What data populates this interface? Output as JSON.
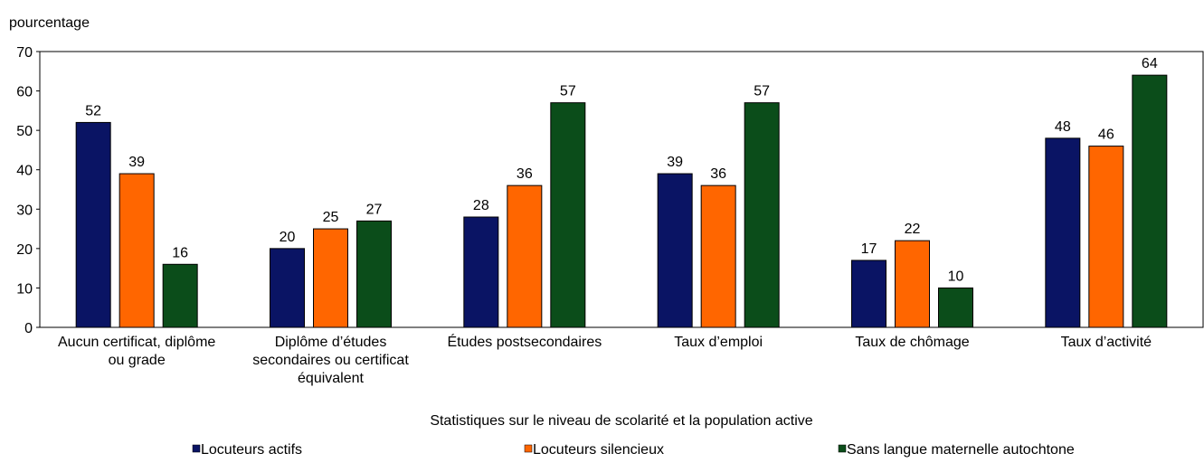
{
  "chart_data": {
    "type": "bar",
    "y_label": "pourcentage",
    "x_label": "Statistiques sur le niveau de scolarité et la population active",
    "categories": [
      "Aucun certificat, diplôme ou grade",
      "Diplôme d’études secondaires ou certificat équivalent",
      "Études postsecondaires",
      "Taux d’emploi",
      "Taux de chômage",
      "Taux d’activité"
    ],
    "series": [
      {
        "name": "Locuteurs actifs",
        "color": "#0a1464",
        "values": [
          52,
          20,
          28,
          39,
          17,
          48
        ]
      },
      {
        "name": "Locuteurs silencieux",
        "color": "#ff6600",
        "values": [
          39,
          25,
          36,
          36,
          22,
          46
        ]
      },
      {
        "name": "Sans langue maternelle autochtone",
        "color": "#0b4d1a",
        "values": [
          16,
          27,
          57,
          57,
          10,
          64
        ]
      }
    ],
    "ylim": [
      0,
      70
    ],
    "yticks": [
      0,
      10,
      20,
      30,
      40,
      50,
      60,
      70
    ],
    "legend": "bottom"
  }
}
